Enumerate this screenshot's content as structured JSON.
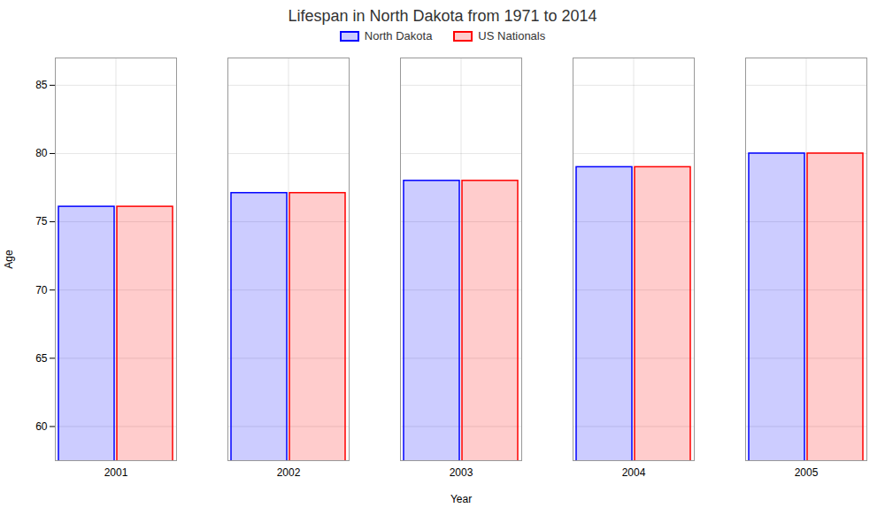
{
  "chart_data": {
    "type": "bar",
    "title": "Lifespan in North Dakota from 1971 to 2014",
    "x_label": "Year",
    "y_label": "Age",
    "categories": [
      "2001",
      "2002",
      "2003",
      "2004",
      "2005"
    ],
    "series": [
      {
        "name": "North Dakota",
        "color": "#0000ff",
        "values": [
          76.1,
          77.1,
          78.0,
          79.0,
          80.0
        ]
      },
      {
        "name": "US Nationals",
        "color": "#ff0000",
        "values": [
          76.1,
          77.1,
          78.0,
          79.0,
          80.0
        ]
      }
    ],
    "ylim": [
      57.5,
      87
    ],
    "yticks": [
      60,
      65,
      70,
      75,
      80,
      85
    ],
    "grid": true,
    "legend": "top"
  }
}
